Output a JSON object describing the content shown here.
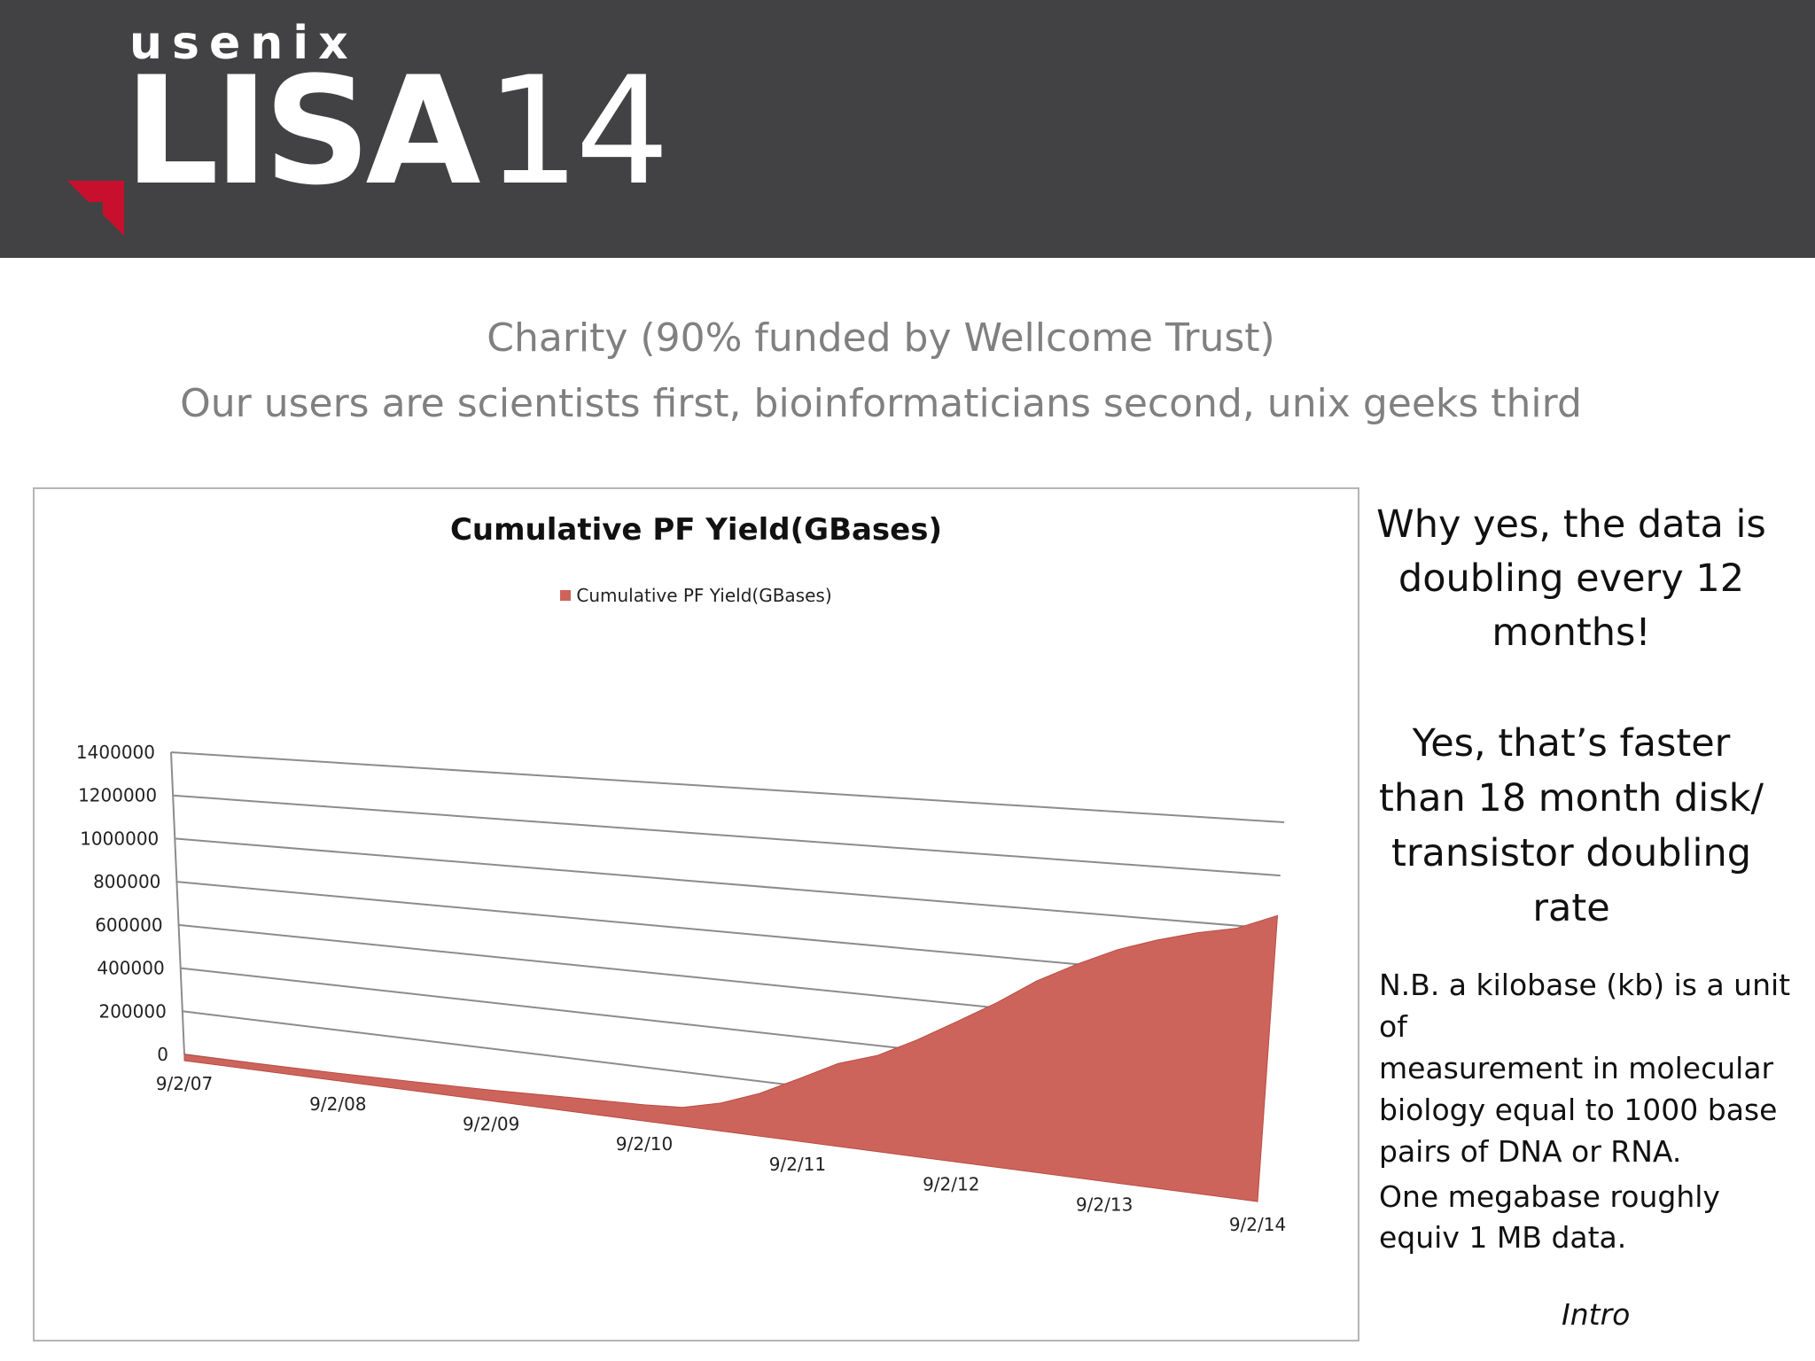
{
  "header": {
    "org": "usenix",
    "event": "LISA",
    "event_year": "14"
  },
  "subtitles": [
    "Charity (90% funded by Wellcome Trust)",
    "Our users are scientists first, bioinformaticians second, unix geeks third"
  ],
  "colors": {
    "header_bg": "#424244",
    "accent_red": "#c8102e",
    "series_fill": "#cd645b",
    "subtitle_gray": "#808080"
  },
  "chart_data": {
    "type": "area",
    "title": "Cumulative PF Yield(GBases)",
    "xlabel": "",
    "ylabel": "",
    "y_ticks": [
      "1400000",
      "1200000",
      "1000000",
      "800000",
      "600000",
      "400000",
      "200000",
      "0"
    ],
    "ylim": [
      0,
      1400000
    ],
    "x_tick_labels": [
      "9/2/07",
      "9/2/08",
      "9/2/09",
      "9/2/10",
      "9/2/11",
      "9/2/12",
      "9/2/13",
      "9/2/14"
    ],
    "grid": true,
    "legend": "top",
    "perspective": "3d",
    "series": [
      {
        "name": "Cumulative PF Yield(GBases)",
        "color": "#cd645b",
        "x": [
          "9/2/07",
          "3/2/08",
          "9/2/08",
          "3/2/09",
          "9/2/09",
          "3/2/10",
          "9/2/10",
          "12/2/10",
          "3/2/11",
          "6/2/11",
          "9/2/11",
          "12/2/11",
          "3/2/12",
          "6/2/12",
          "9/2/12",
          "12/2/12",
          "3/2/13",
          "6/2/13",
          "9/2/13",
          "12/2/13",
          "3/2/14",
          "6/2/14",
          "9/2/14"
        ],
        "y": [
          0,
          2000,
          6000,
          12000,
          20000,
          32000,
          42000,
          52000,
          90000,
          150000,
          230000,
          310000,
          360000,
          440000,
          530000,
          620000,
          720000,
          800000,
          870000,
          920000,
          960000,
          990000,
          1050000
        ]
      }
    ]
  },
  "sidebar": {
    "callout_1": "Why yes, the data is\ndoubling every 12\nmonths!",
    "callout_2": "Yes, that’s faster\nthan 18 month disk/\ntransistor doubling\nrate",
    "note_kilobase": "N.B. a kilobase (kb) is a unit of\nmeasurement in molecular\nbiology equal to 1000 base\n pairs of DNA or RNA.",
    "note_megabase": "One megabase roughly\nequiv 1 MB data.",
    "section_label": "Intro"
  }
}
